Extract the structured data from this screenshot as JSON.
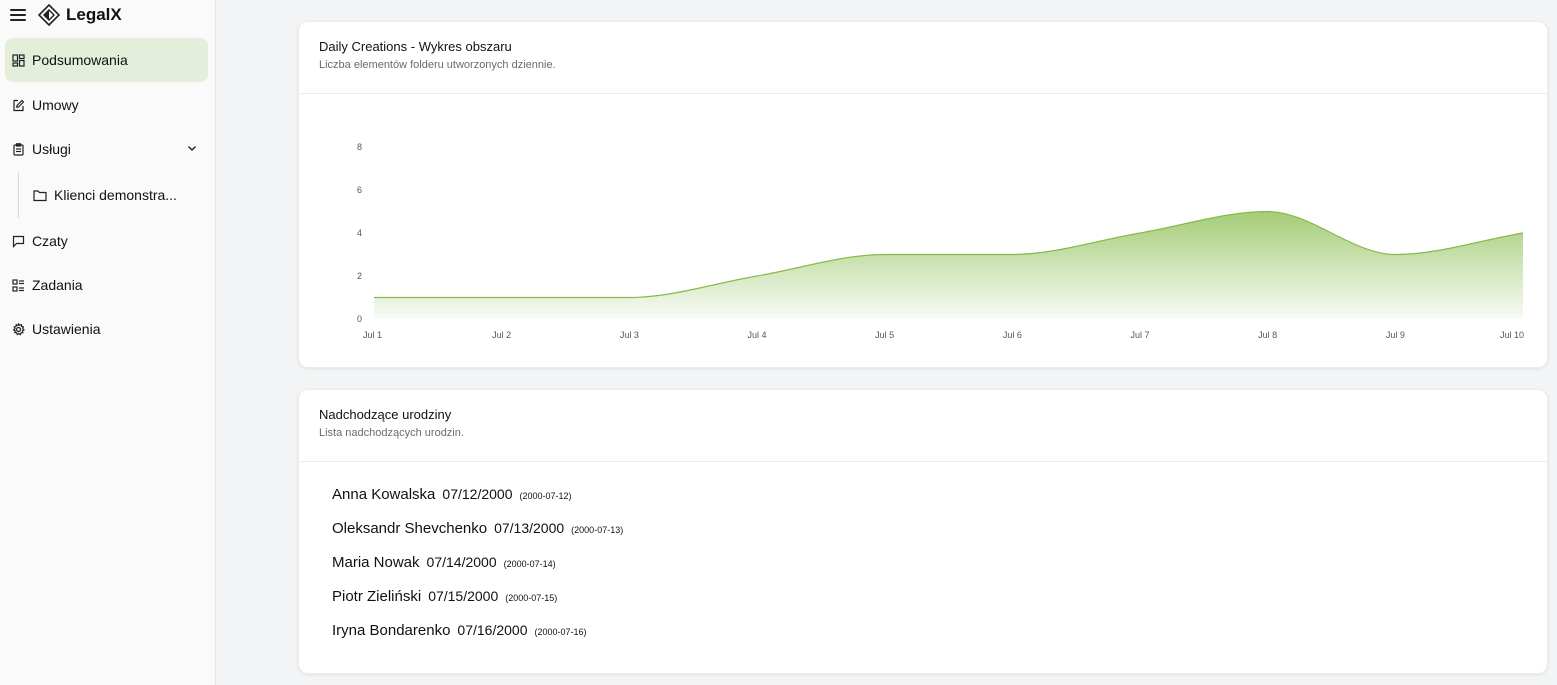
{
  "app": {
    "name": "LegalX"
  },
  "sidebar": {
    "items": [
      {
        "label": "Podsumowania",
        "icon": "dashboard-icon",
        "active": true
      },
      {
        "label": "Umowy",
        "icon": "edit-document-icon"
      },
      {
        "label": "Usługi",
        "icon": "clipboard-icon",
        "expanded": true
      },
      {
        "label": "Czaty",
        "icon": "chat-icon"
      },
      {
        "label": "Zadania",
        "icon": "tasks-icon"
      },
      {
        "label": "Ustawienia",
        "icon": "gear-icon"
      }
    ],
    "subitems": [
      {
        "label": "Klienci demonstra...",
        "icon": "folder-icon"
      }
    ]
  },
  "chart_card": {
    "title": "Daily Creations - Wykres obszaru",
    "subtitle": "Liczba elementów folderu utworzonych dziennie."
  },
  "chart_data": {
    "type": "area",
    "title": "Daily Creations - Wykres obszaru",
    "categories": [
      "Jul 1",
      "Jul 2",
      "Jul 3",
      "Jul 4",
      "Jul 5",
      "Jul 6",
      "Jul 7",
      "Jul 8",
      "Jul 9",
      "Jul 10"
    ],
    "values": [
      1,
      1,
      1,
      2,
      3,
      3,
      4,
      5,
      3,
      4
    ],
    "yticks": [
      0,
      2,
      4,
      6,
      8
    ],
    "ylim": [
      0,
      8
    ],
    "grid": false,
    "color": "#86bb4a"
  },
  "bday_card": {
    "title": "Nadchodzące urodziny",
    "subtitle": "Lista nadchodzących urodzin.",
    "rows": [
      {
        "name": "Anna Kowalska",
        "date": "07/12/2000",
        "iso": "(2000-07-12)"
      },
      {
        "name": "Oleksandr Shevchenko",
        "date": "07/13/2000",
        "iso": "(2000-07-13)"
      },
      {
        "name": "Maria Nowak",
        "date": "07/14/2000",
        "iso": "(2000-07-14)"
      },
      {
        "name": "Piotr Zieliński",
        "date": "07/15/2000",
        "iso": "(2000-07-15)"
      },
      {
        "name": "Iryna Bondarenko",
        "date": "07/16/2000",
        "iso": "(2000-07-16)"
      }
    ]
  }
}
